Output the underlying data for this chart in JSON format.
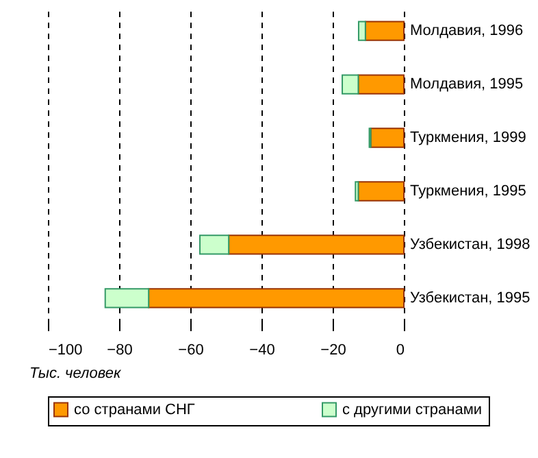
{
  "chart_data": {
    "type": "bar",
    "orientation": "horizontal",
    "stacked": true,
    "xlabel": "Тыс. человек",
    "categories": [
      "Молдавия, 1996",
      "Молдавия, 1995",
      "Туркмения, 1999",
      "Туркмения, 1995",
      "Узбекистан, 1998",
      "Узбекистан, 1995"
    ],
    "series": [
      {
        "name": "со странами СНГ",
        "color": "#ff9900",
        "values": [
          -10.8,
          -12.8,
          -9.3,
          -12.8,
          -49.2,
          -71.7
        ]
      },
      {
        "name": "с другими странами",
        "color": "#ccffcc",
        "values": [
          -1.9,
          -4.5,
          -0.4,
          -0.8,
          -8.1,
          -12.2
        ]
      }
    ],
    "xlim": [
      -100,
      0
    ],
    "xticks": [
      -100,
      -80,
      -60,
      -40,
      -20,
      0
    ],
    "grid": "x",
    "legend": "bottom"
  }
}
